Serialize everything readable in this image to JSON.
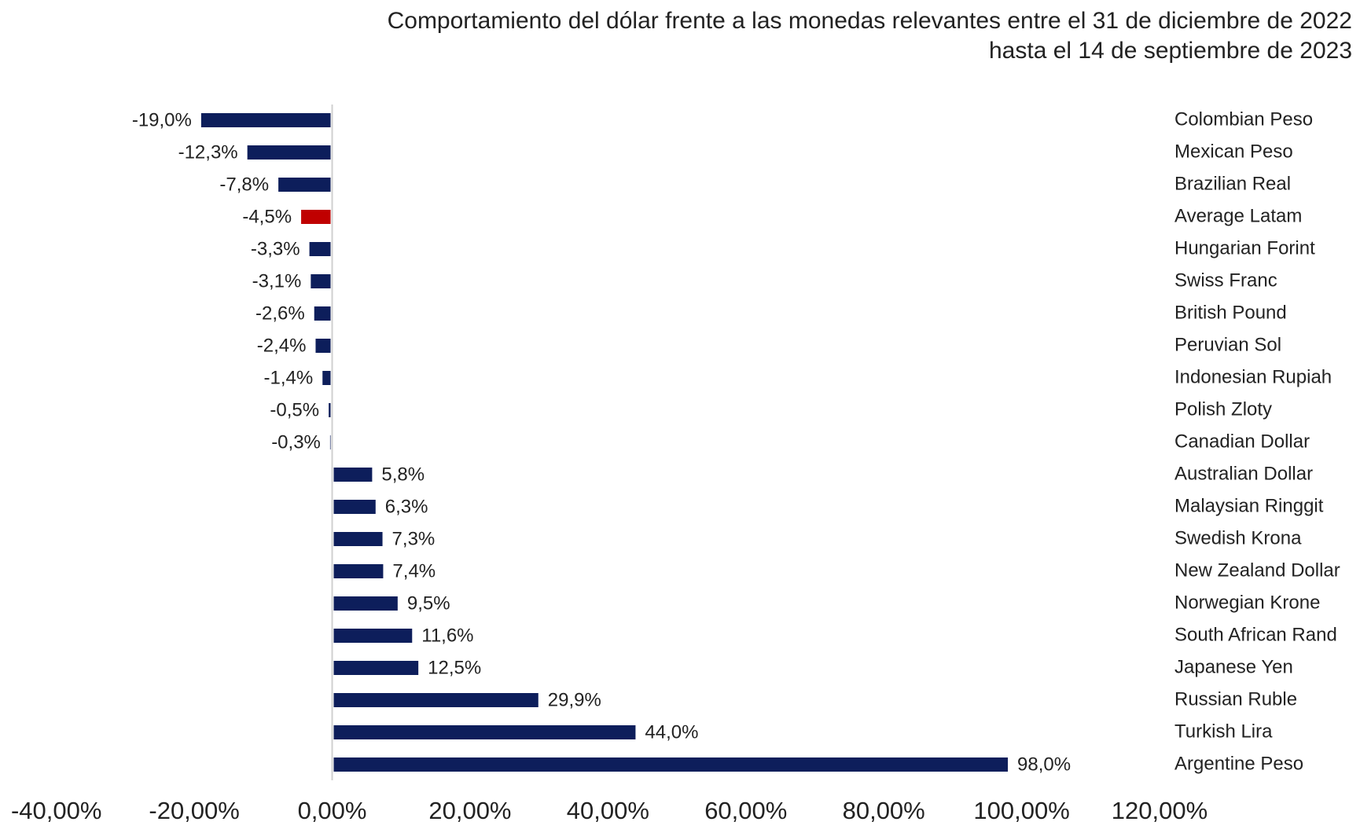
{
  "chart_data": {
    "type": "barh",
    "title": [
      "Comportamiento del dólar frente a las monedas relevantes entre el 31 de diciembre de 2022",
      "hasta el 14 de septiembre de 2023"
    ],
    "categories": [
      "Colombian Peso",
      "Mexican Peso",
      "Brazilian Real",
      "Average Latam",
      "Hungarian Forint",
      "Swiss Franc",
      "British Pound",
      "Peruvian Sol",
      "Indonesian Rupiah",
      "Polish Zloty",
      "Canadian Dollar",
      "Australian Dollar",
      "Malaysian Ringgit",
      "Swedish Krona",
      "New Zealand Dollar",
      "Norwegian Krone",
      "South African Rand",
      "Japanese Yen",
      "Russian Ruble",
      "Turkish Lira",
      "Argentine Peso"
    ],
    "values": [
      -19.0,
      -12.3,
      -7.8,
      -4.5,
      -3.3,
      -3.1,
      -2.6,
      -2.4,
      -1.4,
      -0.5,
      -0.3,
      5.8,
      6.3,
      7.3,
      7.4,
      9.5,
      11.6,
      12.5,
      29.9,
      44.0,
      98.0
    ],
    "value_labels": [
      "-19,0%",
      "-12,3%",
      "-7,8%",
      "-4,5%",
      "-3,3%",
      "-3,1%",
      "-2,6%",
      "-2,4%",
      "-1,4%",
      "-0,5%",
      "-0,3%",
      "5,8%",
      "6,3%",
      "7,3%",
      "7,4%",
      "9,5%",
      "11,6%",
      "12,5%",
      "29,9%",
      "44,0%",
      "98,0%"
    ],
    "colors": [
      "#0d1e5b",
      "#0d1e5b",
      "#0d1e5b",
      "#c00000",
      "#0d1e5b",
      "#0d1e5b",
      "#0d1e5b",
      "#0d1e5b",
      "#0d1e5b",
      "#0d1e5b",
      "#0d1e5b",
      "#0d1e5b",
      "#0d1e5b",
      "#0d1e5b",
      "#0d1e5b",
      "#0d1e5b",
      "#0d1e5b",
      "#0d1e5b",
      "#0d1e5b",
      "#0d1e5b",
      "#0d1e5b"
    ],
    "xlim": [
      -40,
      120
    ],
    "xticks": [
      {
        "value": -40,
        "label": "-40,00%"
      },
      {
        "value": -20,
        "label": "-20,00%"
      },
      {
        "value": 0,
        "label": "0,00%"
      },
      {
        "value": 20,
        "label": "20,00%"
      },
      {
        "value": 40,
        "label": "40,00%"
      },
      {
        "value": 60,
        "label": "60,00%"
      },
      {
        "value": 80,
        "label": "80,00%"
      },
      {
        "value": 100,
        "label": "100,00%"
      },
      {
        "value": 120,
        "label": "120,00%"
      }
    ]
  }
}
